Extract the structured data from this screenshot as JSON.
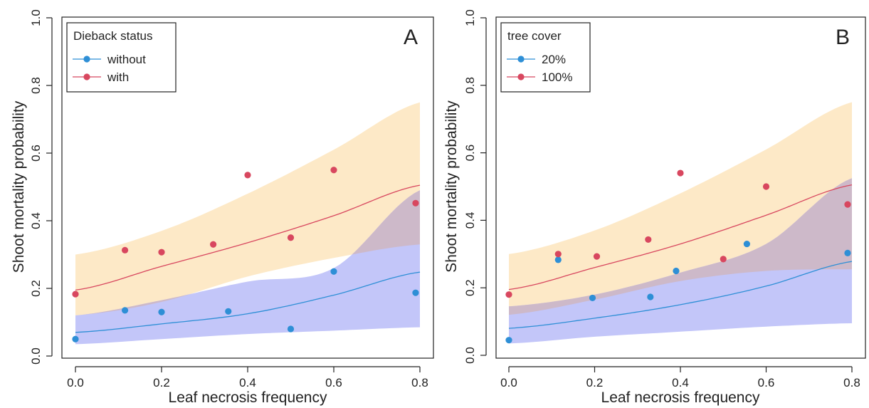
{
  "colors": {
    "band_orange": "#fde9c7",
    "band_blue": "#c3c6f9",
    "band_overlap": "#cdb9c9",
    "line_blue": "#2e8fd6",
    "line_red": "#d8475f",
    "axis": "#222222"
  },
  "chart_data": [
    {
      "type": "line",
      "panel_label": "A",
      "xlabel": "Leaf necrosis frequency",
      "ylabel": "Shoot mortality probability",
      "xlim": [
        0,
        0.8
      ],
      "ylim": [
        0,
        1
      ],
      "x_ticks": [
        "0.0",
        "0.2",
        "0.4",
        "0.6",
        "0.8"
      ],
      "y_ticks": [
        "0.0",
        "0.2",
        "0.4",
        "0.6",
        "0.8",
        "1.0"
      ],
      "grid": false,
      "legend": {
        "title": "Dieback status",
        "placement": "top-left",
        "entries": [
          {
            "label": "without",
            "color": "#2e8fd6"
          },
          {
            "label": "with",
            "color": "#d8475f"
          }
        ]
      },
      "series": [
        {
          "name": "without",
          "color": "#2e8fd6",
          "band_color": "#c3c6f9",
          "fit": {
            "x": [
              0.0,
              0.2,
              0.4,
              0.6,
              0.8
            ],
            "y": [
              0.07,
              0.095,
              0.125,
              0.18,
              0.248
            ]
          },
          "ci_lower": {
            "x": [
              0.0,
              0.2,
              0.4,
              0.6,
              0.8
            ],
            "y": [
              0.035,
              0.05,
              0.065,
              0.075,
              0.085
            ]
          },
          "ci_upper": {
            "x": [
              0.0,
              0.2,
              0.4,
              0.6,
              0.8
            ],
            "y": [
              0.12,
              0.165,
              0.22,
              0.26,
              0.49
            ]
          },
          "points": {
            "x": [
              0.0,
              0.115,
              0.2,
              0.355,
              0.5,
              0.6,
              0.79
            ],
            "y": [
              0.05,
              0.135,
              0.13,
              0.132,
              0.08,
              0.25,
              0.187
            ]
          }
        },
        {
          "name": "with",
          "color": "#d8475f",
          "band_color": "#fde9c7",
          "fit": {
            "x": [
              0.0,
              0.2,
              0.4,
              0.6,
              0.8
            ],
            "y": [
              0.195,
              0.265,
              0.335,
              0.415,
              0.505
            ]
          },
          "ci_lower": {
            "x": [
              0.0,
              0.2,
              0.4,
              0.6,
              0.8
            ],
            "y": [
              0.12,
              0.16,
              0.235,
              0.29,
              0.33
            ]
          },
          "ci_upper": {
            "x": [
              0.0,
              0.2,
              0.4,
              0.6,
              0.8
            ],
            "y": [
              0.3,
              0.37,
              0.48,
              0.61,
              0.75
            ]
          },
          "points": {
            "x": [
              0.0,
              0.115,
              0.2,
              0.32,
              0.4,
              0.5,
              0.6,
              0.79
            ],
            "y": [
              0.183,
              0.313,
              0.307,
              0.33,
              0.535,
              0.35,
              0.55,
              0.452
            ]
          }
        }
      ]
    },
    {
      "type": "line",
      "panel_label": "B",
      "xlabel": "Leaf necrosis frequency",
      "ylabel": "Shoot mortality probability",
      "xlim": [
        0,
        0.8
      ],
      "ylim": [
        0,
        1
      ],
      "x_ticks": [
        "0.0",
        "0.2",
        "0.4",
        "0.6",
        "0.8"
      ],
      "y_ticks": [
        "0.0",
        "0.2",
        "0.4",
        "0.6",
        "0.8",
        "1.0"
      ],
      "grid": false,
      "legend": {
        "title": "tree cover",
        "placement": "top-left",
        "entries": [
          {
            "label": "20%",
            "color": "#2e8fd6"
          },
          {
            "label": "100%",
            "color": "#d8475f"
          }
        ]
      },
      "series": [
        {
          "name": "20%",
          "color": "#2e8fd6",
          "band_color": "#c3c6f9",
          "fit": {
            "x": [
              0.0,
              0.2,
              0.4,
              0.6,
              0.8
            ],
            "y": [
              0.08,
              0.11,
              0.15,
              0.205,
              0.278
            ]
          },
          "ci_lower": {
            "x": [
              0.0,
              0.2,
              0.4,
              0.6,
              0.8
            ],
            "y": [
              0.035,
              0.055,
              0.07,
              0.085,
              0.095
            ]
          },
          "ci_upper": {
            "x": [
              0.0,
              0.2,
              0.4,
              0.6,
              0.8
            ],
            "y": [
              0.145,
              0.18,
              0.245,
              0.33,
              0.525
            ]
          },
          "points": {
            "x": [
              0.0,
              0.115,
              0.195,
              0.33,
              0.39,
              0.555,
              0.79
            ],
            "y": [
              0.045,
              0.283,
              0.17,
              0.173,
              0.25,
              0.33,
              0.303
            ]
          }
        },
        {
          "name": "100%",
          "color": "#d8475f",
          "band_color": "#fde9c7",
          "fit": {
            "x": [
              0.0,
              0.2,
              0.4,
              0.6,
              0.8
            ],
            "y": [
              0.195,
              0.26,
              0.33,
              0.415,
              0.505
            ]
          },
          "ci_lower": {
            "x": [
              0.0,
              0.2,
              0.4,
              0.6,
              0.8
            ],
            "y": [
              0.12,
              0.165,
              0.22,
              0.25,
              0.255
            ]
          },
          "ci_upper": {
            "x": [
              0.0,
              0.2,
              0.4,
              0.6,
              0.8
            ],
            "y": [
              0.3,
              0.37,
              0.48,
              0.61,
              0.75
            ]
          },
          "points": {
            "x": [
              0.0,
              0.115,
              0.205,
              0.325,
              0.4,
              0.5,
              0.6,
              0.79
            ],
            "y": [
              0.18,
              0.3,
              0.293,
              0.343,
              0.54,
              0.285,
              0.5,
              0.447
            ]
          }
        }
      ]
    }
  ]
}
